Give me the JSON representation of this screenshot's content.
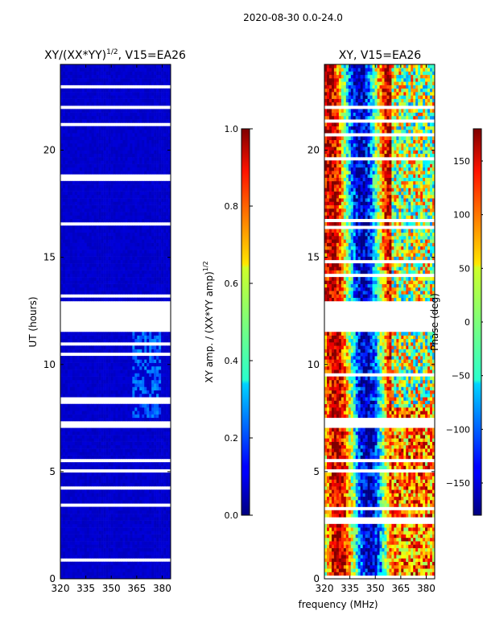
{
  "suptitle": "2020-08-30 0.0-24.0",
  "colors": {
    "flagged_row": "#ffffff",
    "axis": "#000000"
  },
  "chart_data": [
    {
      "type": "heatmap",
      "title_main": "XY/(XX*YY)",
      "title_exp": "1/2",
      "title_suffix": ", V15=EA26",
      "xlabel": "",
      "ylabel": "UT (hours)",
      "xlim": [
        320,
        385
      ],
      "ylim": [
        0,
        24
      ],
      "xticks": [
        320,
        335,
        350,
        365,
        380
      ],
      "yticks": [
        0,
        5,
        10,
        15,
        20
      ],
      "value_description": "normalized cross-correlation amplitude; mostly ~0.05 (dark blue), slightly higher (~0.2) between 362-380 MHz around 7.5-11.5 UT",
      "flagged_ut_ranges": [
        [
          11.6,
          13.0
        ],
        [
          21.9,
          22.1
        ],
        [
          7.1,
          7.3
        ],
        [
          4.9,
          5.1
        ]
      ],
      "colorbar": {
        "label_main": "XY amp. / (XX*YY amp)",
        "label_exp": "1/2",
        "range": [
          0.0,
          1.0
        ],
        "ticks": [
          "0.0",
          "0.2",
          "0.4",
          "0.6",
          "0.8",
          "1.0"
        ]
      }
    },
    {
      "type": "heatmap",
      "title": "XY, V15=EA26",
      "xlabel": "frequency (MHz)",
      "ylabel": "",
      "xlim": [
        320,
        385
      ],
      "ylim": [
        0,
        24
      ],
      "xticks": [
        320,
        335,
        350,
        365,
        380
      ],
      "yticks": [
        0,
        5,
        10,
        15,
        20
      ],
      "value_description": "cross-correlation phase in degrees; vertical stripes below ~360 MHz, noisy structure above ~360 MHz",
      "flagged_ut_ranges": [
        [
          11.6,
          13.0
        ],
        [
          21.9,
          22.1
        ],
        [
          7.1,
          7.3
        ],
        [
          4.9,
          5.1
        ]
      ],
      "colorbar": {
        "label": "Phase (deg)",
        "range": [
          -180,
          180
        ],
        "ticks": [
          "−150",
          "−100",
          "−50",
          "0",
          "50",
          "100",
          "150"
        ]
      }
    }
  ]
}
